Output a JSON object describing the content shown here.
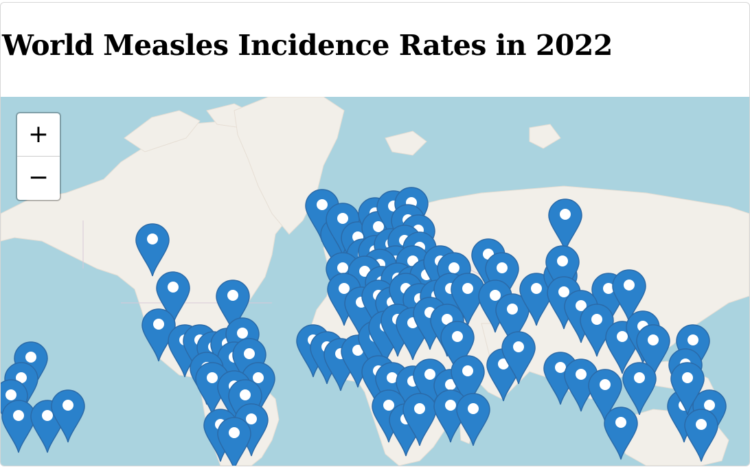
{
  "title": "World Measles Incidence Rates in 2022",
  "map": {
    "ocean_color": "#aad3df",
    "land_color": "#f2efe9",
    "ice_color": "#fbfbfb",
    "marker_color": "#2a81cb",
    "marker_icon": "map-pin-icon"
  },
  "zoom": {
    "in_label": "+",
    "out_label": "−"
  }
}
